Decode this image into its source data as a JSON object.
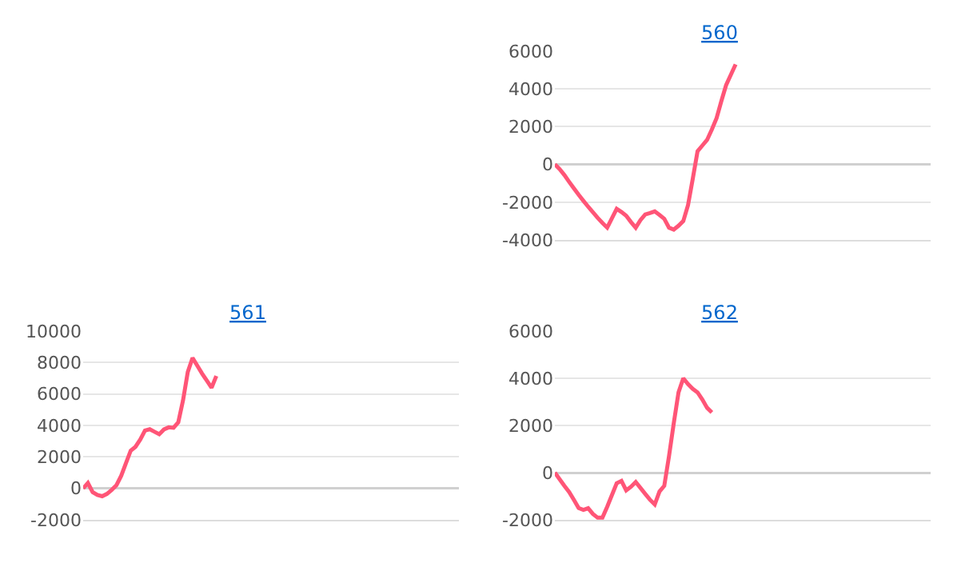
{
  "chart_data": [
    {
      "type": "line",
      "title": "560",
      "color": "#ff5577",
      "grid": "y",
      "marker": "none",
      "tick_labels": "y",
      "ylim": [
        -4000,
        6000
      ],
      "yticks": [
        -4000,
        -2000,
        0,
        2000,
        4000,
        6000
      ],
      "categories": [
        null,
        null,
        null,
        null,
        null,
        null,
        null,
        null,
        null,
        null,
        null,
        null,
        null,
        null,
        null,
        null,
        null,
        null,
        null,
        null,
        null,
        null,
        null,
        null,
        null,
        null,
        null,
        null,
        null,
        null,
        null,
        null,
        null,
        null,
        null,
        null,
        null,
        null,
        null,
        null,
        null,
        null,
        null,
        null,
        null,
        null,
        null,
        null,
        null,
        null,
        null,
        null,
        null,
        null,
        null,
        null,
        null,
        null,
        null,
        null,
        null,
        null,
        null,
        null,
        null,
        null,
        null,
        null,
        null,
        null,
        null,
        null,
        null,
        null,
        null,
        null,
        null,
        null,
        null,
        null
      ],
      "values": [
        0,
        -250,
        -560,
        -920,
        -1270,
        -1610,
        -1930,
        -2240,
        -2530,
        -2830,
        -3100,
        -3350,
        -2850,
        -2350,
        -2520,
        -2720,
        -3050,
        -3350,
        -2950,
        -2650,
        -2580,
        -2490,
        -2680,
        -2880,
        -3350,
        -3450,
        -3250,
        -3000,
        -2150,
        -750,
        700,
        1000,
        1300,
        1850,
        2450,
        3350,
        4200,
        4750,
        5300,
        null,
        null,
        null,
        null,
        null,
        null,
        null,
        null,
        null,
        null,
        null,
        null,
        null,
        null,
        null,
        null,
        null,
        null,
        null,
        null,
        null,
        null,
        null,
        null,
        null,
        null,
        null,
        null,
        null,
        null,
        null,
        null,
        null,
        null,
        null,
        null,
        null,
        null,
        null,
        null,
        null
      ]
    },
    {
      "type": "line",
      "title": "561",
      "color": "#ff5577",
      "grid": "y",
      "marker": "none",
      "tick_labels": "y",
      "ylim": [
        -2000,
        10000
      ],
      "yticks": [
        -2000,
        0,
        2000,
        4000,
        6000,
        8000,
        10000
      ],
      "categories": [
        null,
        null,
        null,
        null,
        null,
        null,
        null,
        null,
        null,
        null,
        null,
        null,
        null,
        null,
        null,
        null,
        null,
        null,
        null,
        null,
        null,
        null,
        null,
        null,
        null,
        null,
        null,
        null,
        null,
        null,
        null,
        null,
        null,
        null,
        null,
        null,
        null,
        null,
        null,
        null,
        null,
        null,
        null,
        null,
        null,
        null,
        null,
        null,
        null,
        null,
        null,
        null,
        null,
        null,
        null,
        null,
        null,
        null,
        null,
        null,
        null,
        null,
        null,
        null,
        null,
        null,
        null,
        null,
        null,
        null,
        null,
        null,
        null,
        null,
        null,
        null,
        null,
        null,
        null,
        null
      ],
      "values": [
        0,
        340,
        -240,
        -420,
        -500,
        -350,
        -100,
        200,
        800,
        1600,
        2400,
        2640,
        3100,
        3680,
        3760,
        3600,
        3440,
        3750,
        3880,
        3850,
        4200,
        5600,
        7400,
        8300,
        7800,
        7300,
        6850,
        6400,
        7150,
        null,
        null,
        null,
        null,
        null,
        null,
        null,
        null,
        null,
        null,
        null,
        null,
        null,
        null,
        null,
        null,
        null,
        null,
        null,
        null,
        null,
        null,
        null,
        null,
        null,
        null,
        null,
        null,
        null,
        null,
        null,
        null,
        null,
        null,
        null,
        null,
        null,
        null,
        null,
        null,
        null,
        null,
        null,
        null,
        null,
        null,
        null,
        null,
        null,
        null,
        null
      ]
    },
    {
      "type": "line",
      "title": "562",
      "color": "#ff5577",
      "grid": "y",
      "marker": "none",
      "tick_labels": "y",
      "ylim": [
        -2000,
        6000
      ],
      "yticks": [
        -2000,
        0,
        2000,
        4000,
        6000
      ],
      "categories": [
        null,
        null,
        null,
        null,
        null,
        null,
        null,
        null,
        null,
        null,
        null,
        null,
        null,
        null,
        null,
        null,
        null,
        null,
        null,
        null,
        null,
        null,
        null,
        null,
        null,
        null,
        null,
        null,
        null,
        null,
        null,
        null,
        null,
        null,
        null,
        null,
        null,
        null,
        null,
        null,
        null,
        null,
        null,
        null,
        null,
        null,
        null,
        null,
        null,
        null,
        null,
        null,
        null,
        null,
        null,
        null,
        null,
        null,
        null,
        null,
        null,
        null,
        null,
        null,
        null,
        null,
        null,
        null,
        null,
        null,
        null,
        null,
        null,
        null,
        null,
        null,
        null,
        null,
        null,
        null
      ],
      "values": [
        0,
        -280,
        -560,
        -820,
        -1150,
        -1500,
        -1580,
        -1510,
        -1750,
        -1910,
        -1910,
        -1450,
        -950,
        -450,
        -350,
        -750,
        -600,
        -400,
        -650,
        -900,
        -1150,
        -1350,
        -800,
        -560,
        700,
        2100,
        3400,
        4000,
        3750,
        3550,
        3400,
        3100,
        2750,
        2550,
        null,
        null,
        null,
        null,
        null,
        null,
        null,
        null,
        null,
        null,
        null,
        null,
        null,
        null,
        null,
        null,
        null,
        null,
        null,
        null,
        null,
        null,
        null,
        null,
        null,
        null,
        null,
        null,
        null,
        null,
        null,
        null,
        null,
        null,
        null,
        null,
        null,
        null,
        null,
        null,
        null,
        null,
        null,
        null,
        null,
        null
      ]
    }
  ]
}
